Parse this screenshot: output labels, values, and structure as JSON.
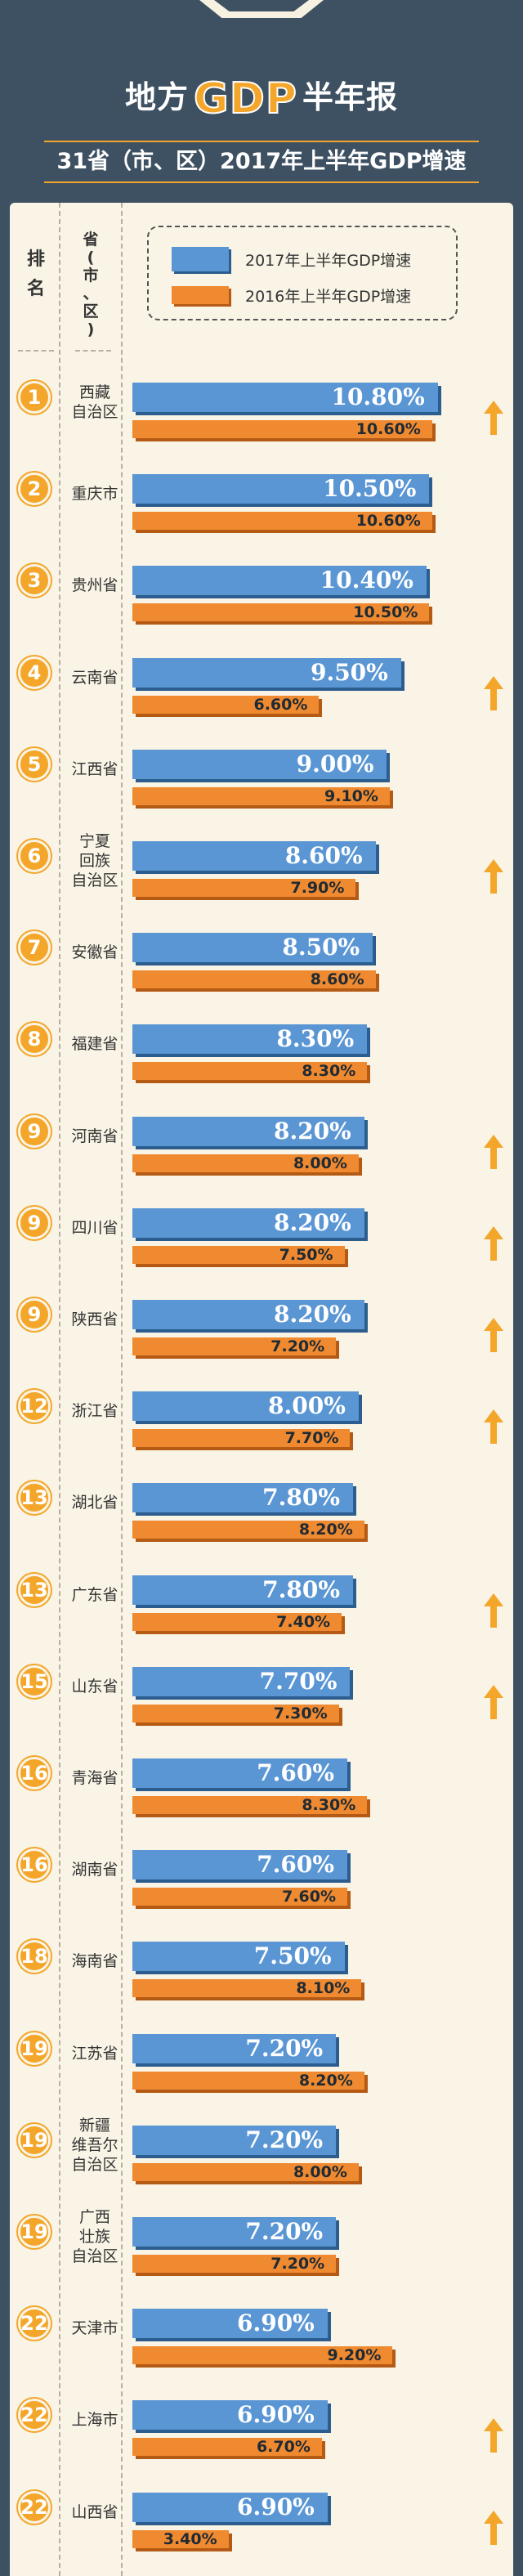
{
  "title": {
    "prefix": "地方",
    "highlight": "GDP",
    "suffix": "半年报"
  },
  "subtitle": "31省（市、区）2017年上半年GDP增速",
  "headers": {
    "rank": "排\n名",
    "province": "省\n(\n市\n、\n区\n)"
  },
  "legend": {
    "series_2017": "2017年上半年GDP增速",
    "series_2016": "2016年上半年GDP增速"
  },
  "colors": {
    "bar_2017": "#5a96d4",
    "bar_2016": "#f08a30",
    "accent": "#f4a62a",
    "background": "#3e5162",
    "panel": "#f9f4e6"
  },
  "chart_data": {
    "type": "bar",
    "orientation": "horizontal",
    "categories": [
      "西藏\n自治区",
      "重庆市",
      "贵州省",
      "云南省",
      "江西省",
      "宁夏\n回族\n自治区",
      "安徽省",
      "福建省",
      "河南省",
      "四川省",
      "陕西省",
      "浙江省",
      "湖北省",
      "广东省",
      "山东省",
      "青海省",
      "湖南省",
      "海南省",
      "江苏省",
      "新疆\n维吾尔\n自治区",
      "广西\n壮族\n自治区",
      "天津市",
      "上海市",
      "山西省"
    ],
    "ranks": [
      "1",
      "2",
      "3",
      "4",
      "5",
      "6",
      "7",
      "8",
      "9",
      "9",
      "9",
      "12",
      "13",
      "13",
      "15",
      "16",
      "16",
      "18",
      "19",
      "19",
      "19",
      "22",
      "22",
      "22"
    ],
    "series": [
      {
        "name": "2017年上半年GDP增速",
        "values": [
          10.8,
          10.5,
          10.4,
          9.5,
          9.0,
          8.6,
          8.5,
          8.3,
          8.2,
          8.2,
          8.2,
          8.0,
          7.8,
          7.8,
          7.7,
          7.6,
          7.6,
          7.5,
          7.2,
          7.2,
          7.2,
          6.9,
          6.9,
          6.9
        ],
        "labels": [
          "10.80%",
          "10.50%",
          "10.40%",
          "9.50%",
          "9.00%",
          "8.60%",
          "8.50%",
          "8.30%",
          "8.20%",
          "8.20%",
          "8.20%",
          "8.00%",
          "7.80%",
          "7.80%",
          "7.70%",
          "7.60%",
          "7.60%",
          "7.50%",
          "7.20%",
          "7.20%",
          "7.20%",
          "6.90%",
          "6.90%",
          "6.90%"
        ]
      },
      {
        "name": "2016年上半年GDP增速",
        "values": [
          10.6,
          10.6,
          10.5,
          6.6,
          9.1,
          7.9,
          8.6,
          8.3,
          8.0,
          7.5,
          7.2,
          7.7,
          8.2,
          7.4,
          7.3,
          8.3,
          7.6,
          8.1,
          8.2,
          8.0,
          7.2,
          9.2,
          6.7,
          3.4
        ],
        "labels": [
          "10.60%",
          "10.60%",
          "10.50%",
          "6.60%",
          "9.10%",
          "7.90%",
          "8.60%",
          "8.30%",
          "8.00%",
          "7.50%",
          "7.20%",
          "7.70%",
          "8.20%",
          "7.40%",
          "7.30%",
          "8.30%",
          "7.60%",
          "8.10%",
          "8.20%",
          "8.00%",
          "7.20%",
          "9.20%",
          "6.70%",
          "3.40%"
        ]
      }
    ],
    "up_arrow": [
      true,
      false,
      false,
      true,
      false,
      true,
      false,
      false,
      true,
      true,
      true,
      true,
      false,
      true,
      true,
      false,
      false,
      false,
      false,
      false,
      false,
      false,
      true,
      true
    ],
    "xlim": [
      0,
      11.5
    ]
  }
}
